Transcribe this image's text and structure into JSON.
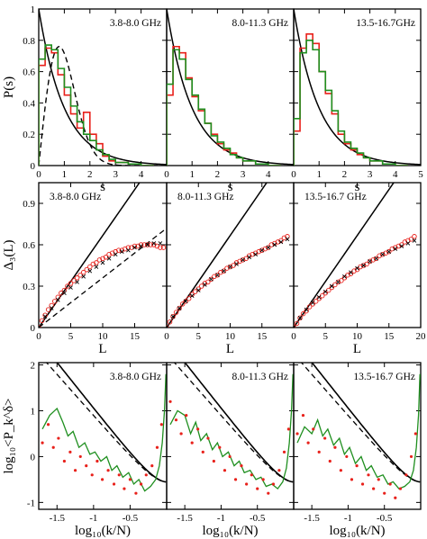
{
  "chart_data": [
    {
      "type": "line",
      "row": "nearest-neighbor-spacing",
      "ylabel": "P(s)",
      "xlabel": "s",
      "xlim": [
        0,
        5
      ],
      "ylim": [
        0,
        1
      ],
      "xticks": [
        0,
        1,
        2,
        3,
        4,
        5
      ],
      "xtick_labels_left": [
        "0",
        "1",
        "2",
        "3",
        "4"
      ],
      "xtick_labels_right": [
        "0",
        "1",
        "2",
        "3",
        "4",
        "5"
      ],
      "yticks": [
        0,
        0.2,
        0.4,
        0.6,
        0.8,
        1
      ],
      "ytick_labels": [
        "0",
        "0.2",
        "0.4",
        "0.6",
        "0.8",
        "1"
      ],
      "grid": false,
      "colors": {
        "red": "#e8211b",
        "green": "#1f8f1f",
        "black": "#000000"
      },
      "panels": [
        {
          "label": "3.8-8.0 GHz",
          "hist_edges": [
            0,
            0.25,
            0.5,
            0.75,
            1.0,
            1.25,
            1.5,
            1.75,
            2.0,
            2.25,
            2.5,
            2.75,
            3.0,
            3.5,
            4.0,
            4.5
          ],
          "hist_red": [
            0.64,
            0.75,
            0.72,
            0.58,
            0.45,
            0.33,
            0.24,
            0.34,
            0.2,
            0.14,
            0.06,
            0.03,
            0.02,
            0.01,
            0.0
          ],
          "hist_green": [
            0.68,
            0.77,
            0.74,
            0.62,
            0.5,
            0.38,
            0.28,
            0.2,
            0.16,
            0.1,
            0.07,
            0.04,
            0.02,
            0.01,
            0.0
          ]
        },
        {
          "label": "8.0-11.3 GHz",
          "hist_edges": [
            0,
            0.25,
            0.5,
            0.75,
            1.0,
            1.25,
            1.5,
            1.75,
            2.0,
            2.25,
            2.5,
            2.75,
            3.0,
            3.5,
            4.0,
            4.5
          ],
          "hist_red": [
            0.45,
            0.76,
            0.72,
            0.56,
            0.44,
            0.35,
            0.27,
            0.2,
            0.14,
            0.1,
            0.08,
            0.05,
            0.03,
            0.01,
            0.0
          ],
          "hist_green": [
            0.52,
            0.74,
            0.68,
            0.55,
            0.45,
            0.36,
            0.27,
            0.19,
            0.15,
            0.11,
            0.07,
            0.05,
            0.03,
            0.01,
            0.0
          ]
        },
        {
          "label": "13.5-16.7GHz",
          "hist_edges": [
            0,
            0.25,
            0.5,
            0.75,
            1.0,
            1.25,
            1.5,
            1.75,
            2.0,
            2.25,
            2.5,
            2.75,
            3.0,
            3.5,
            4.0,
            4.5
          ],
          "hist_red": [
            0.22,
            0.75,
            0.84,
            0.78,
            0.6,
            0.46,
            0.33,
            0.2,
            0.14,
            0.1,
            0.07,
            0.05,
            0.03,
            0.01,
            0.0
          ],
          "hist_green": [
            0.3,
            0.72,
            0.8,
            0.74,
            0.6,
            0.48,
            0.35,
            0.22,
            0.15,
            0.11,
            0.08,
            0.05,
            0.03,
            0.01,
            0.0
          ]
        }
      ]
    },
    {
      "type": "line",
      "row": "spectral-rigidity",
      "ylabel": "Δ₃(L)",
      "xlabel": "L",
      "xlim": [
        0,
        20
      ],
      "ylim": [
        0,
        1.05
      ],
      "xticks": [
        0,
        5,
        10,
        15,
        20
      ],
      "xtick_labels_left": [
        "0",
        "5",
        "10",
        "15"
      ],
      "xtick_labels_right": [
        "0",
        "5",
        "10",
        "15",
        "20"
      ],
      "yticks": [
        0,
        0.3,
        0.6,
        0.9
      ],
      "ytick_labels": [
        "0",
        "0.3",
        "0.6",
        "0.9"
      ],
      "grid": false,
      "panels": [
        {
          "label": "3.8-8.0 GHz",
          "L": [
            0,
            0.5,
            1,
            1.5,
            2,
            2.5,
            3,
            3.5,
            4,
            4.5,
            5,
            5.5,
            6,
            6.5,
            7,
            7.5,
            8,
            8.5,
            9,
            9.5,
            10,
            10.5,
            11,
            11.5,
            12,
            12.5,
            13,
            13.5,
            14,
            14.5,
            15,
            15.5,
            16,
            16.5,
            17,
            17.5,
            18,
            18.5,
            19,
            19.5
          ],
          "red": [
            0,
            0.05,
            0.09,
            0.13,
            0.16,
            0.19,
            0.22,
            0.25,
            0.27,
            0.3,
            0.32,
            0.34,
            0.36,
            0.38,
            0.4,
            0.42,
            0.44,
            0.46,
            0.47,
            0.49,
            0.5,
            0.51,
            0.53,
            0.54,
            0.55,
            0.56,
            0.56,
            0.57,
            0.58,
            0.58,
            0.59,
            0.59,
            0.6,
            0.6,
            0.6,
            0.6,
            0.6,
            0.59,
            0.58,
            0.58
          ],
          "black": [
            0,
            0.04,
            0.08,
            0.11,
            0.14,
            0.17,
            0.2,
            0.22,
            0.25,
            0.27,
            0.29,
            0.31,
            0.33,
            0.35,
            0.37,
            0.39,
            0.41,
            0.43,
            0.44,
            0.46,
            0.47,
            0.49,
            0.5,
            0.51,
            0.53,
            0.54,
            0.55,
            0.56,
            0.56,
            0.57,
            0.58,
            0.58,
            0.59,
            0.59,
            0.6,
            0.6,
            0.61,
            0.61,
            0.61,
            0.61
          ]
        },
        {
          "label": "8.0-11.3 GHz",
          "L": [
            0,
            0.5,
            1,
            1.5,
            2,
            2.5,
            3,
            3.5,
            4,
            4.5,
            5,
            5.5,
            6,
            6.5,
            7,
            7.5,
            8,
            8.5,
            9,
            9.5,
            10,
            10.5,
            11,
            11.5,
            12,
            12.5,
            13,
            13.5,
            14,
            14.5,
            15,
            15.5,
            16,
            16.5,
            17,
            17.5,
            18,
            18.5,
            19
          ],
          "red": [
            0,
            0.04,
            0.08,
            0.11,
            0.14,
            0.17,
            0.19,
            0.21,
            0.24,
            0.26,
            0.28,
            0.3,
            0.32,
            0.33,
            0.35,
            0.37,
            0.38,
            0.4,
            0.41,
            0.43,
            0.44,
            0.45,
            0.47,
            0.48,
            0.49,
            0.5,
            0.52,
            0.53,
            0.54,
            0.55,
            0.56,
            0.57,
            0.58,
            0.6,
            0.61,
            0.62,
            0.63,
            0.65,
            0.66
          ],
          "black": [
            0,
            0.04,
            0.08,
            0.11,
            0.14,
            0.16,
            0.19,
            0.21,
            0.23,
            0.25,
            0.27,
            0.29,
            0.31,
            0.33,
            0.35,
            0.36,
            0.38,
            0.39,
            0.41,
            0.42,
            0.44,
            0.45,
            0.46,
            0.47,
            0.49,
            0.5,
            0.51,
            0.52,
            0.53,
            0.55,
            0.56,
            0.57,
            0.58,
            0.59,
            0.6,
            0.61,
            0.62,
            0.63,
            0.64
          ]
        },
        {
          "label": "13.5-16.7 GHz",
          "L": [
            0,
            0.5,
            1,
            1.5,
            2,
            2.5,
            3,
            3.5,
            4,
            4.5,
            5,
            5.5,
            6,
            6.5,
            7,
            7.5,
            8,
            8.5,
            9,
            9.5,
            10,
            10.5,
            11,
            11.5,
            12,
            12.5,
            13,
            13.5,
            14,
            14.5,
            15,
            15.5,
            16,
            16.5,
            17,
            17.5,
            18,
            18.5,
            19
          ],
          "red": [
            0,
            0.03,
            0.07,
            0.1,
            0.12,
            0.15,
            0.17,
            0.19,
            0.21,
            0.23,
            0.25,
            0.27,
            0.29,
            0.31,
            0.33,
            0.34,
            0.36,
            0.38,
            0.39,
            0.41,
            0.42,
            0.44,
            0.45,
            0.46,
            0.48,
            0.49,
            0.5,
            0.52,
            0.53,
            0.54,
            0.55,
            0.57,
            0.58,
            0.59,
            0.6,
            0.62,
            0.63,
            0.64,
            0.66
          ],
          "black": [
            0,
            0.04,
            0.07,
            0.1,
            0.13,
            0.16,
            0.18,
            0.2,
            0.22,
            0.24,
            0.26,
            0.28,
            0.3,
            0.32,
            0.33,
            0.35,
            0.37,
            0.38,
            0.4,
            0.41,
            0.43,
            0.44,
            0.45,
            0.47,
            0.48,
            0.49,
            0.5,
            0.52,
            0.53,
            0.54,
            0.55,
            0.56,
            0.57,
            0.58,
            0.59,
            0.6,
            0.61,
            0.62,
            0.63
          ]
        }
      ]
    },
    {
      "type": "line",
      "row": "power-spectrum",
      "ylabel": "log₁₀<P_k^δ>",
      "xlabel": "log₁₀(k/N)",
      "xlim": [
        -1.75,
        0
      ],
      "ylim": [
        -1.15,
        2.05
      ],
      "xticks": [
        -1.5,
        -1,
        -0.5
      ],
      "xtick_labels": [
        "-1.5",
        "-1",
        "-0.5"
      ],
      "yticks": [
        -1,
        0,
        1,
        2
      ],
      "ytick_labels": [
        "-1",
        "0",
        "1",
        "2"
      ],
      "grid": false,
      "panels": [
        {
          "label": "3.8-8.0 GHz",
          "green_x": [
            -1.7,
            -1.6,
            -1.5,
            -1.42,
            -1.35,
            -1.28,
            -1.2,
            -1.12,
            -1.05,
            -0.98,
            -0.9,
            -0.82,
            -0.75,
            -0.68,
            -0.6,
            -0.52,
            -0.45,
            -0.38,
            -0.3,
            -0.22,
            -0.15,
            -0.1,
            -0.06,
            -0.03,
            -0.01
          ],
          "green_y": [
            0.6,
            0.9,
            1.05,
            0.75,
            0.45,
            0.55,
            0.2,
            0.3,
            0.05,
            0.1,
            -0.1,
            0.0,
            -0.3,
            -0.2,
            -0.45,
            -0.35,
            -0.6,
            -0.5,
            -0.75,
            -0.65,
            -0.5,
            -0.2,
            0.3,
            1.0,
            1.8
          ],
          "red_x": [
            -1.7,
            -1.62,
            -1.55,
            -1.48,
            -1.4,
            -1.32,
            -1.25,
            -1.18,
            -1.1,
            -1.02,
            -0.95,
            -0.88,
            -0.8,
            -0.72,
            -0.65,
            -0.58,
            -0.5,
            -0.42,
            -0.35,
            -0.28,
            -0.2,
            -0.13,
            -0.07
          ],
          "red_y": [
            0.3,
            0.7,
            0.2,
            0.4,
            -0.1,
            0.1,
            -0.3,
            0.0,
            -0.2,
            -0.4,
            -0.1,
            -0.5,
            -0.3,
            -0.6,
            -0.4,
            -0.7,
            -0.5,
            -0.8,
            -0.6,
            -0.4,
            -0.2,
            0.2,
            0.7
          ]
        },
        {
          "label": "8.0-11.3 GHz",
          "green_x": [
            -1.7,
            -1.6,
            -1.5,
            -1.42,
            -1.35,
            -1.28,
            -1.2,
            -1.12,
            -1.05,
            -0.98,
            -0.9,
            -0.82,
            -0.75,
            -0.68,
            -0.6,
            -0.52,
            -0.45,
            -0.38,
            -0.3,
            -0.22,
            -0.15,
            -0.1,
            -0.06,
            -0.03,
            -0.01
          ],
          "green_y": [
            0.7,
            1.0,
            0.9,
            0.5,
            0.75,
            0.35,
            0.5,
            0.15,
            0.3,
            0.0,
            0.1,
            -0.2,
            -0.1,
            -0.35,
            -0.3,
            -0.5,
            -0.45,
            -0.65,
            -0.6,
            -0.7,
            -0.55,
            -0.25,
            0.3,
            1.0,
            1.8
          ],
          "red_x": [
            -1.7,
            -1.62,
            -1.55,
            -1.48,
            -1.4,
            -1.32,
            -1.25,
            -1.18,
            -1.1,
            -1.02,
            -0.95,
            -0.88,
            -0.8,
            -0.72,
            -0.65,
            -0.58,
            -0.5,
            -0.42,
            -0.35,
            -0.28,
            -0.2,
            -0.13,
            -0.07
          ],
          "red_y": [
            1.2,
            0.8,
            0.5,
            0.9,
            0.3,
            0.6,
            0.1,
            0.4,
            -0.1,
            0.2,
            -0.3,
            0.0,
            -0.5,
            -0.2,
            -0.6,
            -0.4,
            -0.7,
            -0.5,
            -0.8,
            -0.6,
            -0.3,
            0.1,
            0.6
          ]
        },
        {
          "label": "13.5-16.7 GHz",
          "green_x": [
            -1.7,
            -1.6,
            -1.5,
            -1.42,
            -1.35,
            -1.28,
            -1.2,
            -1.12,
            -1.05,
            -0.98,
            -0.9,
            -0.82,
            -0.75,
            -0.68,
            -0.6,
            -0.52,
            -0.45,
            -0.38,
            -0.3,
            -0.22,
            -0.15,
            -0.1,
            -0.06,
            -0.03,
            -0.01
          ],
          "green_y": [
            0.3,
            0.65,
            0.5,
            0.8,
            0.45,
            0.6,
            0.25,
            0.4,
            0.05,
            0.2,
            -0.15,
            0.0,
            -0.3,
            -0.2,
            -0.45,
            -0.4,
            -0.6,
            -0.55,
            -0.7,
            -0.65,
            -0.55,
            -0.3,
            0.2,
            0.9,
            1.8
          ],
          "red_x": [
            -1.7,
            -1.62,
            -1.55,
            -1.48,
            -1.4,
            -1.32,
            -1.25,
            -1.18,
            -1.1,
            -1.02,
            -0.95,
            -0.88,
            -0.8,
            -0.72,
            -0.65,
            -0.58,
            -0.5,
            -0.42,
            -0.35,
            -0.28,
            -0.2,
            -0.13,
            -0.07
          ],
          "red_y": [
            0.5,
            0.9,
            0.3,
            0.6,
            0.1,
            0.4,
            -0.1,
            0.2,
            -0.3,
            0.0,
            -0.5,
            -0.2,
            -0.6,
            -0.4,
            -0.7,
            -0.5,
            -0.8,
            -0.6,
            -0.9,
            -0.7,
            -0.4,
            0.0,
            0.5
          ]
        }
      ]
    }
  ]
}
